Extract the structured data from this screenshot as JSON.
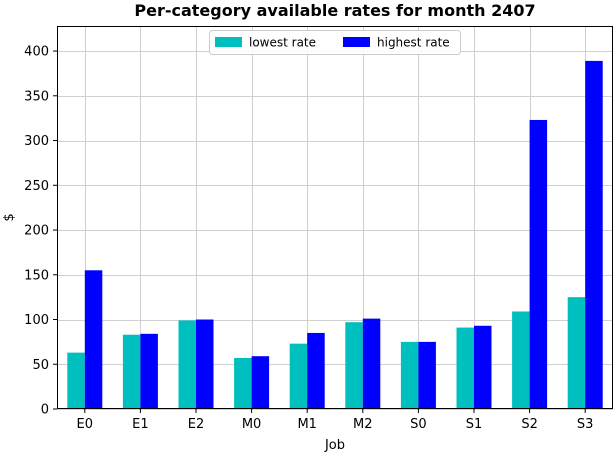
{
  "chart_data": {
    "type": "bar",
    "title": "Per-category available rates for month 2407",
    "xlabel": "Job",
    "ylabel": "$",
    "categories": [
      "E0",
      "E1",
      "E2",
      "M0",
      "M1",
      "M2",
      "S0",
      "S1",
      "S2",
      "S3"
    ],
    "series": [
      {
        "name": "lowest rate",
        "color": "#00bfbf",
        "values": [
          63,
          83,
          99,
          57,
          73,
          97,
          75,
          91,
          109,
          125
        ]
      },
      {
        "name": "highest rate",
        "color": "#0000ff",
        "values": [
          155,
          84,
          100,
          59,
          85,
          101,
          75,
          93,
          323,
          389
        ]
      }
    ],
    "ylim": [
      0,
      428
    ],
    "yticks": [
      0,
      50,
      100,
      150,
      200,
      250,
      300,
      350,
      400
    ],
    "grid": true,
    "legend_position": "top-center",
    "legend_columns": 2
  }
}
